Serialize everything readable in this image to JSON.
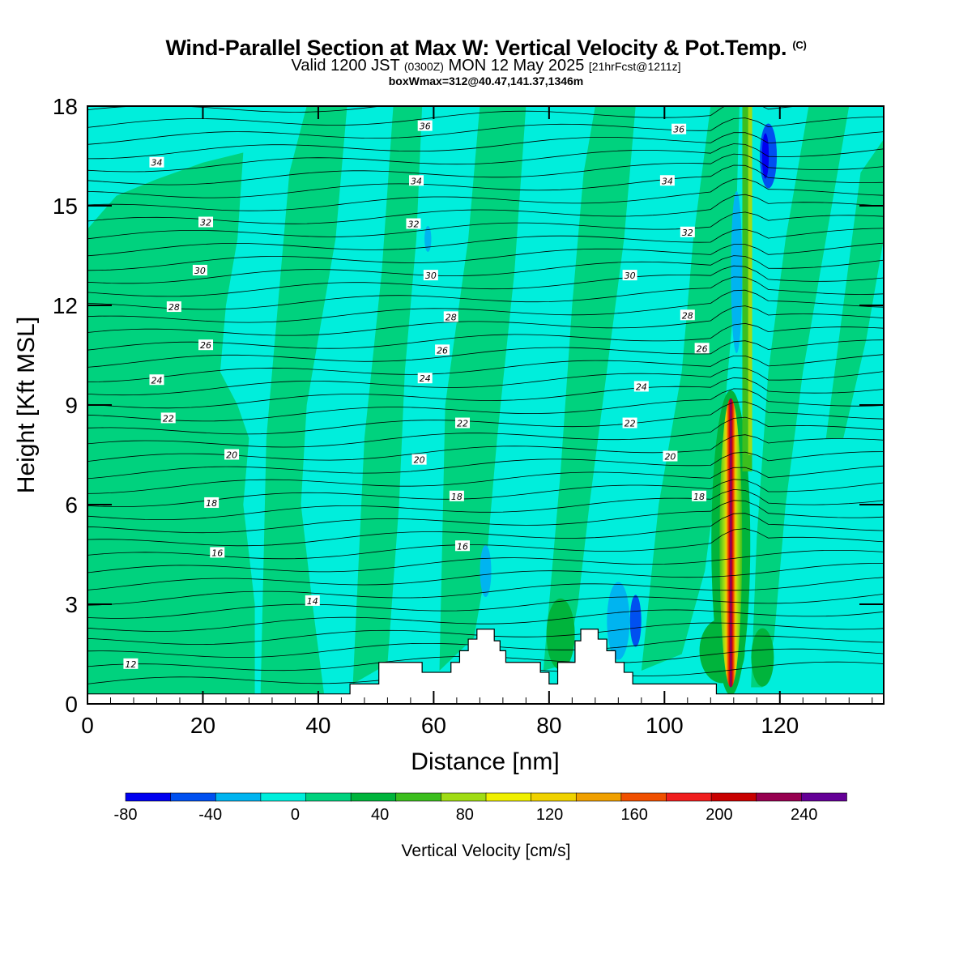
{
  "title": {
    "main": "Wind-Parallel Section at Max W: Vertical Velocity & Pot.Temp.",
    "copyright": "(C)",
    "valid_prefix": "Valid 1200 JST",
    "utc": "(0300Z)",
    "valid_date": "MON 12 May 2025",
    "forecast": "[21hrFcst@1211z]",
    "box_info": "boxWmax=312@40.47,141.37,1346m"
  },
  "colors": {
    "background_field": "#00EEDC",
    "palette": [
      "#0000F0",
      "#0050F0",
      "#00B4F0",
      "#00EEDC",
      "#00D27E",
      "#00B43C",
      "#3CBE1E",
      "#A0DC14",
      "#F0F000",
      "#F0D200",
      "#F0A000",
      "#F05000",
      "#F01E1E",
      "#C80000",
      "#960050",
      "#640096"
    ],
    "terrain": "#ffffff",
    "contour": "#000000"
  },
  "chart_data": {
    "type": "heatmap",
    "xlabel": "Distance [nm]",
    "ylabel": "Height [Kft MSL]",
    "xlim": [
      0,
      138
    ],
    "ylim": [
      0,
      18
    ],
    "x_ticks": [
      "0",
      "20",
      "40",
      "60",
      "80",
      "100",
      "120"
    ],
    "y_ticks": [
      "0",
      "3",
      "6",
      "9",
      "12",
      "15",
      "18"
    ],
    "colorbar": {
      "label": "Vertical Velocity [cm/s]",
      "levels": [
        -80,
        -60,
        -40,
        -20,
        0,
        20,
        40,
        60,
        80,
        100,
        120,
        140,
        160,
        180,
        200,
        220,
        240,
        260
      ],
      "tick_labels": [
        "-80",
        "-40",
        "0",
        "40",
        "80",
        "120",
        "160",
        "200",
        "240"
      ]
    },
    "max_updraft": {
      "x": 111.5,
      "y_base": 0.5,
      "y_top": 9.2,
      "peak_cm_s": 312
    },
    "potential_temperature_contours": [
      {
        "label": "12",
        "x": 7.5,
        "y": 1.2
      },
      {
        "label": "14",
        "x": 39,
        "y": 3.1
      },
      {
        "label": "16",
        "x": 22.5,
        "y": 4.55
      },
      {
        "label": "16",
        "x": 65,
        "y": 4.75
      },
      {
        "label": "18",
        "x": 21.5,
        "y": 6.05
      },
      {
        "label": "18",
        "x": 64,
        "y": 6.25
      },
      {
        "label": "18",
        "x": 106,
        "y": 6.25
      },
      {
        "label": "20",
        "x": 25,
        "y": 7.5
      },
      {
        "label": "20",
        "x": 57.5,
        "y": 7.35
      },
      {
        "label": "20",
        "x": 101,
        "y": 7.45
      },
      {
        "label": "22",
        "x": 14,
        "y": 8.6
      },
      {
        "label": "22",
        "x": 65,
        "y": 8.45
      },
      {
        "label": "22",
        "x": 94,
        "y": 8.45
      },
      {
        "label": "24",
        "x": 12,
        "y": 9.75
      },
      {
        "label": "24",
        "x": 58.5,
        "y": 9.8
      },
      {
        "label": "24",
        "x": 96,
        "y": 9.55
      },
      {
        "label": "26",
        "x": 20.5,
        "y": 10.8
      },
      {
        "label": "26",
        "x": 61.5,
        "y": 10.65
      },
      {
        "label": "26",
        "x": 106.5,
        "y": 10.7
      },
      {
        "label": "28",
        "x": 15,
        "y": 11.95
      },
      {
        "label": "28",
        "x": 63,
        "y": 11.65
      },
      {
        "label": "28",
        "x": 104,
        "y": 11.7
      },
      {
        "label": "30",
        "x": 19.5,
        "y": 13.05
      },
      {
        "label": "30",
        "x": 59.5,
        "y": 12.9
      },
      {
        "label": "30",
        "x": 94,
        "y": 12.9
      },
      {
        "label": "32",
        "x": 20.5,
        "y": 14.5
      },
      {
        "label": "32",
        "x": 56.5,
        "y": 14.45
      },
      {
        "label": "32",
        "x": 104,
        "y": 14.2
      },
      {
        "label": "34",
        "x": 12,
        "y": 16.3
      },
      {
        "label": "34",
        "x": 57,
        "y": 15.75
      },
      {
        "label": "34",
        "x": 100.5,
        "y": 15.75
      },
      {
        "label": "36",
        "x": 58.5,
        "y": 17.4
      },
      {
        "label": "36",
        "x": 102.5,
        "y": 17.3
      }
    ],
    "terrain_profile": [
      [
        0,
        0.3
      ],
      [
        45.5,
        0.3
      ],
      [
        45.5,
        0.6
      ],
      [
        50.5,
        0.6
      ],
      [
        50.5,
        1.25
      ],
      [
        58,
        1.25
      ],
      [
        58,
        0.95
      ],
      [
        63,
        0.95
      ],
      [
        63,
        1.25
      ],
      [
        64.5,
        1.25
      ],
      [
        64.5,
        1.6
      ],
      [
        66,
        1.6
      ],
      [
        66,
        1.95
      ],
      [
        67.5,
        1.95
      ],
      [
        67.5,
        2.25
      ],
      [
        70.5,
        2.25
      ],
      [
        70.5,
        1.9
      ],
      [
        71.5,
        1.9
      ],
      [
        71.5,
        1.6
      ],
      [
        72.5,
        1.6
      ],
      [
        72.5,
        1.25
      ],
      [
        78.5,
        1.25
      ],
      [
        78.5,
        0.95
      ],
      [
        80,
        0.95
      ],
      [
        80,
        0.6
      ],
      [
        81.5,
        0.6
      ],
      [
        81.5,
        1.25
      ],
      [
        84.5,
        1.25
      ],
      [
        84.5,
        1.9
      ],
      [
        85.5,
        1.9
      ],
      [
        85.5,
        2.25
      ],
      [
        88.5,
        2.25
      ],
      [
        88.5,
        1.95
      ],
      [
        90,
        1.95
      ],
      [
        90,
        1.6
      ],
      [
        91.5,
        1.6
      ],
      [
        91.5,
        1.25
      ],
      [
        93,
        1.25
      ],
      [
        93,
        0.95
      ],
      [
        94.5,
        0.95
      ],
      [
        94.5,
        0.6
      ],
      [
        109,
        0.6
      ],
      [
        109,
        0.3
      ],
      [
        138,
        0.3
      ]
    ]
  }
}
